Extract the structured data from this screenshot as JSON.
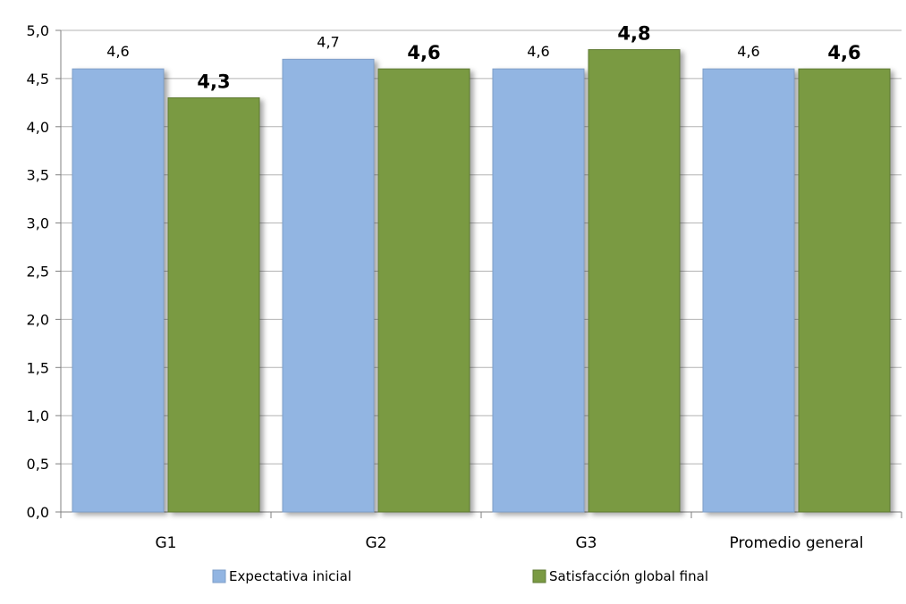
{
  "chart_data": {
    "type": "bar",
    "categories": [
      "G1",
      "G2",
      "G3",
      "Promedio general"
    ],
    "series": [
      {
        "name": "Expectativa inicial",
        "values": [
          4.6,
          4.7,
          4.6,
          4.6
        ],
        "labels": [
          "4,6",
          "4,7",
          "4,6",
          "4,6"
        ],
        "color": "#92b5e2",
        "label_weight": "normal"
      },
      {
        "name": "Satisfacción  global final",
        "values": [
          4.3,
          4.6,
          4.8,
          4.6
        ],
        "labels": [
          "4,3",
          "4,6",
          "4,8",
          "4,6"
        ],
        "color": "#7a9a43",
        "label_weight": "bold"
      }
    ],
    "ylim": [
      0,
      5
    ],
    "yticks": [
      0,
      0.5,
      1,
      1.5,
      2,
      2.5,
      3,
      3.5,
      4,
      4.5,
      5
    ],
    "ytick_labels": [
      "0,0",
      "0,5",
      "1,0",
      "1,5",
      "2,0",
      "2,5",
      "3,0",
      "3,5",
      "4,0",
      "4,5",
      "5,0"
    ],
    "grid": true,
    "legend_position": "bottom",
    "title": "",
    "xlabel": "",
    "ylabel": ""
  }
}
